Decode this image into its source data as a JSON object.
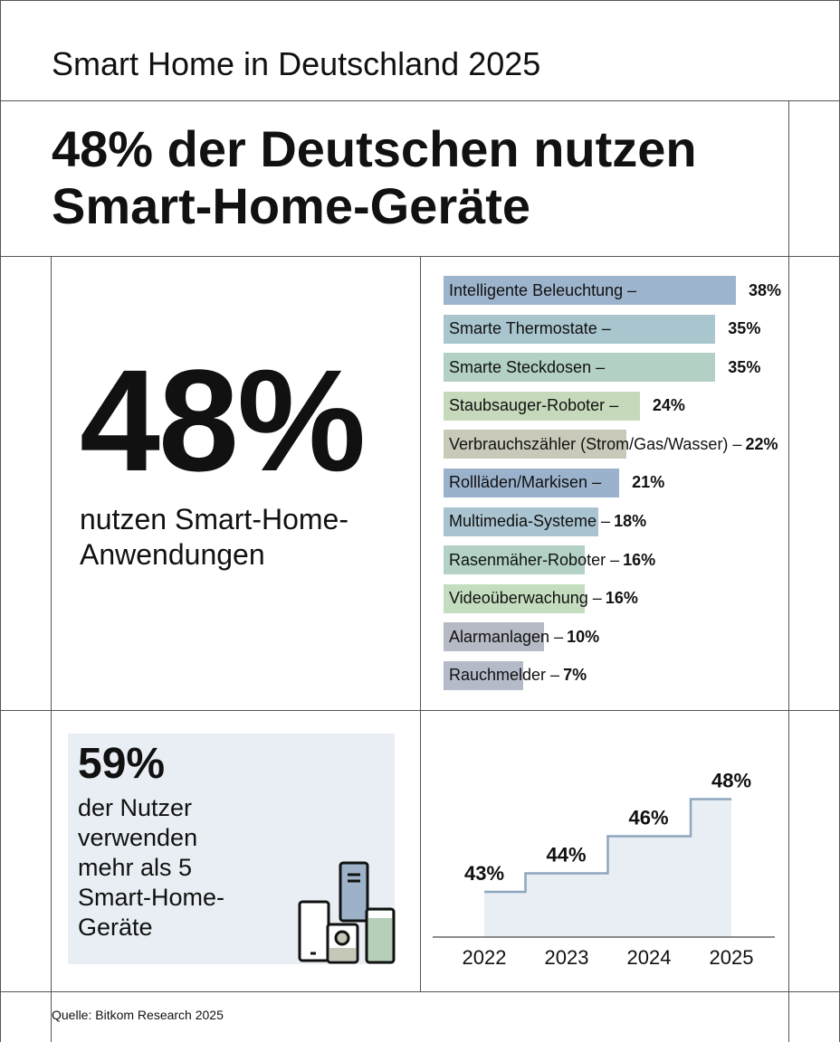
{
  "header": {
    "title": "Smart Home in Deutschland 2025",
    "headline_line1": "48% der Deutschen nutzen",
    "headline_line2": "Smart-Home-Geräte"
  },
  "kpi": {
    "value": "48%",
    "line1": "nutzen Smart-Home-",
    "line2": "Anwendungen"
  },
  "devices_box": {
    "value": "59%",
    "text": "der Nutzer verwenden mehr als 5 Smart-Home-Geräte"
  },
  "source": "Quelle: Bitkom Research 2025",
  "chart_data": [
    {
      "type": "bar",
      "orientation": "horizontal",
      "categories": [
        "Intelligente Beleuchtung",
        "Smarte Thermostate",
        "Smarte Steckdosen",
        "Staubsauger-Roboter",
        "Verbrauchszähler (Strom/Gas/Wasser)",
        "Rollläden/Markisen",
        "Multimedia-Systeme",
        "Rasenmäher-Roboter",
        "Videoüberwachung",
        "Alarmanlagen",
        "Rauchmelder"
      ],
      "values": [
        38,
        35,
        35,
        24,
        22,
        21,
        18,
        16,
        16,
        10,
        7
      ],
      "labels": [
        "38%",
        "35%",
        "35%",
        "24%",
        "22%",
        "21%",
        "18%",
        "16%",
        "16%",
        "10%",
        "7%"
      ],
      "colors": [
        "#9db4cd",
        "#a9c6cf",
        "#b2d0c4",
        "#c6dabb",
        "#c9c9b9",
        "#9bb2cd",
        "#a9c4d0",
        "#b3d2c5",
        "#c4ddbf",
        "#b6bac5",
        "#b4bac7"
      ]
    },
    {
      "type": "line",
      "step": true,
      "x": [
        "2022",
        "2023",
        "2024",
        "2025"
      ],
      "values": [
        43,
        44,
        46,
        48
      ],
      "labels": [
        "43%",
        "44%",
        "46%",
        "48%"
      ],
      "line_color": "#8ea6bf",
      "fill_color": "#e8eef3"
    }
  ]
}
